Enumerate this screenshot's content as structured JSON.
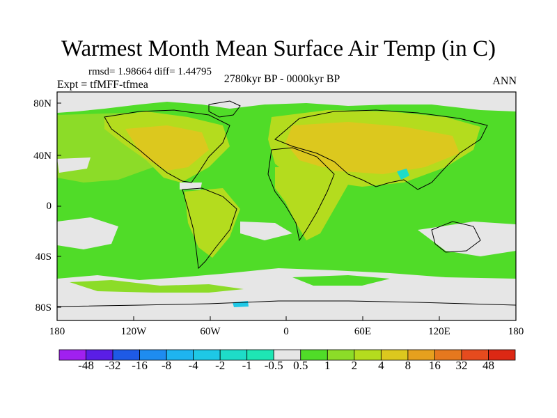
{
  "title": "Warmest Month Mean Surface Air Temp (in C)",
  "stats": "rmsd= 1.98664 diff= 1.44795",
  "experiment": "Expt = tfMFF-tfmea",
  "period": "2780kyr BP - 0000kyr BP",
  "season": "ANN",
  "lat_ticks": [
    "80N",
    "40N",
    "0",
    "40S",
    "80S"
  ],
  "lon_ticks": [
    "180",
    "120W",
    "60W",
    "0",
    "60E",
    "120E",
    "180"
  ],
  "colorbar": {
    "labels": [
      "-48",
      "-32",
      "-16",
      "-8",
      "-4",
      "-2",
      "-1",
      "-0.5",
      "0.5",
      "1",
      "2",
      "4",
      "8",
      "16",
      "32",
      "48"
    ],
    "colors": [
      "#a020f0",
      "#5a1ee6",
      "#1e5ae6",
      "#1e8cf0",
      "#1eb4f0",
      "#1ec8e6",
      "#1edcc8",
      "#1ee6b4",
      "#e6e6e6",
      "#50dc28",
      "#8cdc28",
      "#b4dc1e",
      "#dcc81e",
      "#e6a01e",
      "#e6781e",
      "#e64b1e",
      "#dc2814"
    ]
  }
}
